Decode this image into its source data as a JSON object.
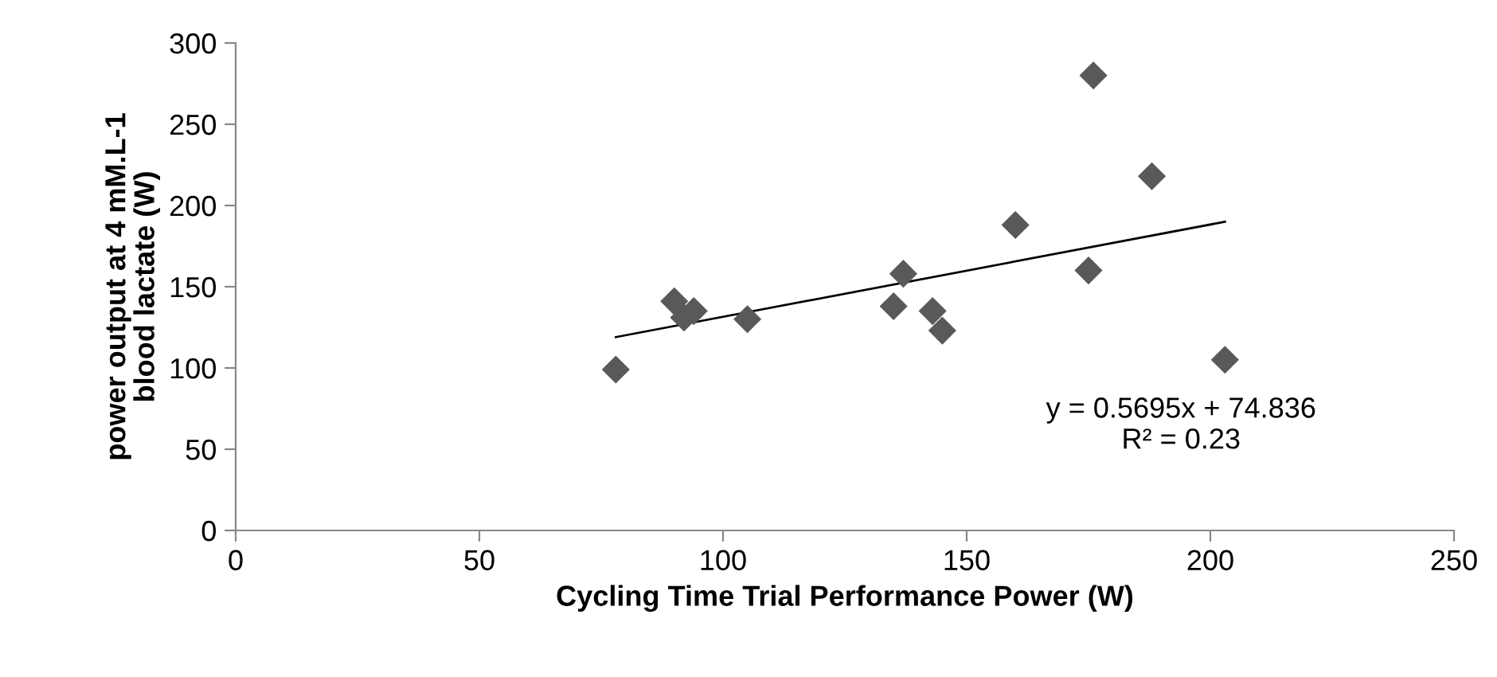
{
  "chart_data": {
    "type": "scatter",
    "xlabel": "Cycling Time Trial Performance Power (W)",
    "ylabel": "power output at 4 mM.L-1\nblood lactate (W)",
    "series": [
      {
        "color": "#595959",
        "marker": "diamond",
        "x": [
          78,
          90,
          92,
          94,
          105,
          135,
          137,
          143,
          145,
          160,
          175,
          176,
          188,
          203
        ],
        "values": [
          99,
          141,
          131,
          135,
          130,
          138,
          158,
          135,
          123,
          188,
          160,
          280,
          218,
          105
        ]
      },
      {
        "type": "line",
        "color": "#000000",
        "marker": "none",
        "x": [
          78,
          203
        ],
        "values": [
          119,
          190
        ]
      }
    ],
    "annotations": [
      "y = 0.5695x + 74.836\nR² = 0.23"
    ],
    "xlim": [
      0,
      250
    ],
    "xticks": [
      0,
      50,
      100,
      150,
      200,
      250
    ],
    "ylim": [
      0,
      300
    ],
    "yticks": [
      0,
      50,
      100,
      150,
      200,
      250,
      300
    ],
    "grid": false,
    "legend": false
  }
}
